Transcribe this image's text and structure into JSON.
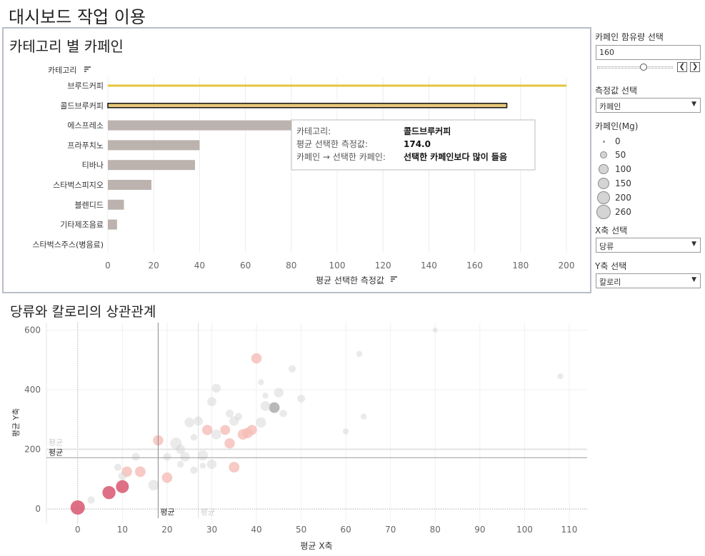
{
  "dashboard": {
    "title": "대시보드 작업 이용"
  },
  "panel1": {
    "title": "카테고리 별 카페인",
    "row_header": "카테고리",
    "x_axis_title": "평균 선택한 측정값"
  },
  "tooltip": {
    "rows": [
      {
        "key": "카테고리:",
        "value": "콜드브루커피"
      },
      {
        "key": "평균 선택한 측정값:",
        "value": "174.0"
      },
      {
        "key": "카페인 → 선택한 카페인:",
        "value": "선택한 카페인보다 많이 들음"
      }
    ]
  },
  "panel2": {
    "title": "당류와 칼로리의 상관관계"
  },
  "rail": {
    "caffeine_param_label": "카페인 함유량 선택",
    "caffeine_param_value": "160",
    "caffeine_slider": {
      "min": 0,
      "max": 260,
      "value": 160
    },
    "prev_symbol": "❮",
    "next_symbol": "❯",
    "measure_label": "측정값 선택",
    "measure_value": "카페인",
    "size_legend_title": "카페인(Mg)",
    "size_legend": [
      "0",
      "50",
      "100",
      "150",
      "200",
      "260"
    ],
    "x_select_label": "X축 선택",
    "x_select_value": "당류",
    "y_select_label": "Y축 선택",
    "y_select_value": "칼로리",
    "dropdown_symbol": "▼"
  },
  "colors": {
    "highlight_bar": "#e4c53d",
    "bar": "#bcb2ae",
    "selected_bar": "#e8c87a",
    "scatter_dark": "#d8566e",
    "scatter_light": "#f5bdb6",
    "scatter_grey": "#d0d0d0"
  },
  "chart_data": [
    {
      "type": "bar",
      "orientation": "horizontal",
      "categories": [
        "브루드커피",
        "콜드브루커피",
        "에스프레소",
        "프라푸치노",
        "티바나",
        "스타벅스피지오",
        "블렌디드",
        "기타제조음료",
        "스타벅스주스(병음료)"
      ],
      "values": [
        200,
        174,
        80,
        40,
        38,
        19,
        7,
        4,
        0
      ],
      "xlim": [
        0,
        200
      ],
      "xticks": [
        0,
        20,
        40,
        60,
        80,
        100,
        120,
        140,
        160,
        180,
        200
      ],
      "xlabel": "평균 선택한 측정값",
      "ylabel": "카테고리",
      "grid": true
    },
    {
      "type": "scatter",
      "xlabel": "평균 X축",
      "ylabel": "평균 Y축",
      "xlim": [
        -7,
        114
      ],
      "ylim": [
        -50,
        625
      ],
      "xticks": [
        0,
        10,
        20,
        30,
        40,
        50,
        60,
        70,
        80,
        90,
        100,
        110
      ],
      "yticks": [
        0,
        200,
        400,
        600
      ],
      "reference_lines": {
        "x_avg": 18,
        "x_avg_faded": 27,
        "y_avg": 172,
        "y_avg_faded": 200,
        "label": "평균",
        "faded_label": "평균"
      },
      "points": [
        {
          "x": 0,
          "y": 5,
          "caffeine": 260,
          "group": "dark"
        },
        {
          "x": 7,
          "y": 55,
          "caffeine": 210,
          "group": "dark"
        },
        {
          "x": 10,
          "y": 75,
          "caffeine": 200,
          "group": "dark"
        },
        {
          "x": 11,
          "y": 125,
          "caffeine": 110,
          "group": "light"
        },
        {
          "x": 14,
          "y": 125,
          "caffeine": 120,
          "group": "light"
        },
        {
          "x": 18,
          "y": 230,
          "caffeine": 110,
          "group": "light"
        },
        {
          "x": 20,
          "y": 105,
          "caffeine": 115,
          "group": "light"
        },
        {
          "x": 29,
          "y": 265,
          "caffeine": 110,
          "group": "light"
        },
        {
          "x": 40,
          "y": 505,
          "caffeine": 115,
          "group": "light"
        },
        {
          "x": 35,
          "y": 140,
          "caffeine": 120,
          "group": "light"
        },
        {
          "x": 38,
          "y": 255,
          "caffeine": 115,
          "group": "light"
        },
        {
          "x": 34,
          "y": 220,
          "caffeine": 110,
          "group": "light"
        },
        {
          "x": 37,
          "y": 250,
          "caffeine": 120,
          "group": "light"
        },
        {
          "x": 33,
          "y": 265,
          "caffeine": 100,
          "group": "light"
        },
        {
          "x": 39,
          "y": 265,
          "caffeine": 105,
          "group": "light"
        },
        {
          "x": 22,
          "y": 220,
          "caffeine": 150,
          "group": "grey"
        },
        {
          "x": 17,
          "y": 80,
          "caffeine": 120,
          "group": "grey"
        },
        {
          "x": 24,
          "y": 175,
          "caffeine": 90,
          "group": "grey"
        },
        {
          "x": 28,
          "y": 180,
          "caffeine": 110,
          "group": "grey"
        },
        {
          "x": 30,
          "y": 150,
          "caffeine": 90,
          "group": "grey"
        },
        {
          "x": 31,
          "y": 250,
          "caffeine": 95,
          "group": "grey"
        },
        {
          "x": 23,
          "y": 200,
          "caffeine": 80,
          "group": "grey"
        },
        {
          "x": 25,
          "y": 290,
          "caffeine": 95,
          "group": "grey"
        },
        {
          "x": 27,
          "y": 295,
          "caffeine": 80,
          "group": "grey"
        },
        {
          "x": 30,
          "y": 360,
          "caffeine": 80,
          "group": "grey"
        },
        {
          "x": 31,
          "y": 405,
          "caffeine": 70,
          "group": "grey"
        },
        {
          "x": 35,
          "y": 295,
          "caffeine": 90,
          "group": "grey"
        },
        {
          "x": 41,
          "y": 290,
          "caffeine": 110,
          "group": "grey"
        },
        {
          "x": 42,
          "y": 345,
          "caffeine": 100,
          "group": "grey"
        },
        {
          "x": 44,
          "y": 340,
          "caffeine": 120,
          "group": "dark-grey"
        },
        {
          "x": 45,
          "y": 390,
          "caffeine": 90,
          "group": "grey"
        },
        {
          "x": 50,
          "y": 370,
          "caffeine": 50,
          "group": "grey"
        },
        {
          "x": 48,
          "y": 470,
          "caffeine": 40,
          "group": "grey"
        },
        {
          "x": 10,
          "y": 110,
          "caffeine": 60,
          "group": "grey"
        },
        {
          "x": 13,
          "y": 175,
          "caffeine": 50,
          "group": "grey"
        },
        {
          "x": 20,
          "y": 175,
          "caffeine": 50,
          "group": "grey"
        },
        {
          "x": 26,
          "y": 130,
          "caffeine": 40,
          "group": "grey"
        },
        {
          "x": 9,
          "y": 140,
          "caffeine": 40,
          "group": "grey"
        },
        {
          "x": 3,
          "y": 30,
          "caffeine": 40,
          "group": "grey"
        },
        {
          "x": 34,
          "y": 320,
          "caffeine": 50,
          "group": "grey"
        },
        {
          "x": 46,
          "y": 320,
          "caffeine": 40,
          "group": "grey"
        },
        {
          "x": 60,
          "y": 260,
          "caffeine": 20,
          "group": "grey"
        },
        {
          "x": 64,
          "y": 310,
          "caffeine": 20,
          "group": "grey"
        },
        {
          "x": 63,
          "y": 520,
          "caffeine": 20,
          "group": "grey"
        },
        {
          "x": 80,
          "y": 600,
          "caffeine": 10,
          "group": "grey"
        },
        {
          "x": 108,
          "y": 445,
          "caffeine": 20,
          "group": "grey"
        },
        {
          "x": 23,
          "y": 150,
          "caffeine": 30,
          "group": "grey"
        },
        {
          "x": 26,
          "y": 240,
          "caffeine": 30,
          "group": "grey"
        },
        {
          "x": 28,
          "y": 145,
          "caffeine": 20,
          "group": "grey"
        },
        {
          "x": 36,
          "y": 310,
          "caffeine": 40,
          "group": "grey"
        },
        {
          "x": 42,
          "y": 380,
          "caffeine": 20,
          "group": "grey"
        },
        {
          "x": 41,
          "y": 425,
          "caffeine": 20,
          "group": "grey"
        }
      ]
    }
  ]
}
